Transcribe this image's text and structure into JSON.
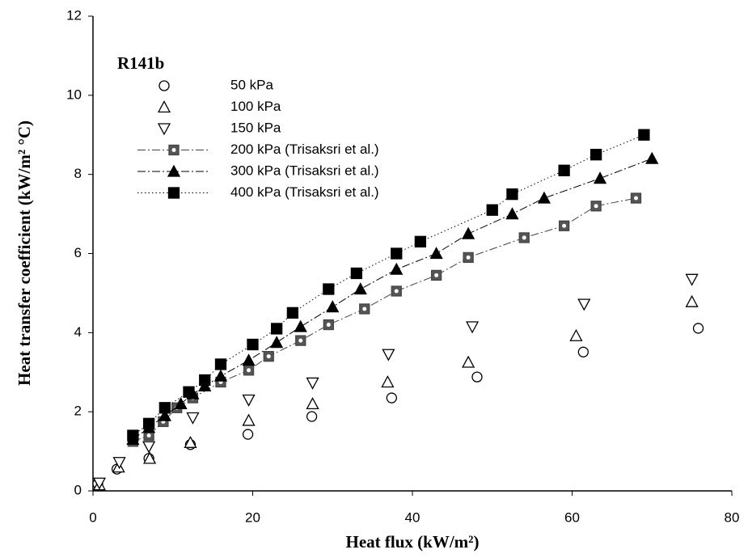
{
  "chart_data": {
    "type": "scatter",
    "x_label": "Heat flux (kW/m²)",
    "y_label": "Heat transfer coefficient (kW/m² °C)",
    "annotation": "R141b",
    "xlim": [
      0,
      80
    ],
    "xticks": [
      0,
      20,
      40,
      60,
      80
    ],
    "ylim": [
      0,
      12
    ],
    "yticks": [
      0,
      2,
      4,
      6,
      8,
      10,
      12
    ],
    "legend": "upper left",
    "series": [
      {
        "name": "50 kPa",
        "color": "#000000",
        "marker": "circle",
        "filled": false,
        "x": [
          0.6,
          3.0,
          7.0,
          12.2,
          19.4,
          27.4,
          37.4,
          48.1,
          61.4,
          75.8
        ],
        "values": [
          0.18,
          0.55,
          0.82,
          1.17,
          1.43,
          1.88,
          2.35,
          2.88,
          3.51,
          4.11
        ]
      },
      {
        "name": "100 kPa",
        "color": "#000000",
        "marker": "triangle-up",
        "filled": false,
        "x": [
          0.8,
          3.2,
          7.1,
          12.2,
          19.5,
          27.5,
          36.9,
          47.0,
          60.5,
          75.0
        ],
        "values": [
          0.15,
          0.6,
          0.82,
          1.22,
          1.78,
          2.2,
          2.75,
          3.25,
          3.92,
          4.78
        ]
      },
      {
        "name": "150 kPa",
        "color": "#000000",
        "marker": "triangle-down",
        "filled": false,
        "x": [
          0.8,
          3.3,
          7.0,
          12.5,
          19.5,
          27.5,
          37.0,
          47.5,
          61.5,
          75.0
        ],
        "values": [
          0.2,
          0.72,
          1.12,
          1.85,
          2.3,
          2.73,
          3.45,
          4.15,
          4.72,
          5.35
        ]
      },
      {
        "name": "200 kPa (Trisaksri et al.)",
        "color": "#444444",
        "marker": "square-dot",
        "filled": true,
        "line_style": "dashdot",
        "x": [
          5,
          7,
          8.8,
          10.5,
          12.5,
          16,
          19.5,
          22,
          26,
          29.5,
          34,
          38,
          43,
          47,
          54,
          59,
          63,
          68
        ],
        "values": [
          1.25,
          1.4,
          1.75,
          2.1,
          2.35,
          2.75,
          3.05,
          3.4,
          3.8,
          4.2,
          4.6,
          5.05,
          5.45,
          5.9,
          6.4,
          6.7,
          7.2,
          7.4
        ]
      },
      {
        "name": "300 kPa (Trisaksri et al.)",
        "color": "#000000",
        "marker": "triangle-up",
        "filled": true,
        "line_style": "dashdot",
        "x": [
          5,
          7,
          9,
          11,
          12.5,
          14,
          16,
          19.5,
          23,
          26,
          30,
          33.5,
          38,
          43,
          47,
          52.5,
          56.5,
          63.5,
          70
        ],
        "values": [
          1.3,
          1.6,
          1.9,
          2.2,
          2.45,
          2.65,
          2.9,
          3.3,
          3.75,
          4.15,
          4.65,
          5.1,
          5.6,
          6.0,
          6.5,
          7.0,
          7.4,
          7.9,
          8.4
        ]
      },
      {
        "name": "400 kPa (Trisaksri et al.)",
        "color": "#000000",
        "marker": "square",
        "filled": true,
        "line_style": "dotted",
        "x": [
          5,
          7,
          9,
          12,
          14,
          16,
          20,
          23,
          25,
          29.5,
          33,
          38,
          41,
          50,
          52.5,
          59,
          63,
          69
        ],
        "values": [
          1.4,
          1.7,
          2.1,
          2.5,
          2.8,
          3.2,
          3.7,
          4.1,
          4.5,
          5.1,
          5.5,
          6.0,
          6.3,
          7.1,
          7.5,
          8.1,
          8.5,
          9.0
        ]
      }
    ]
  }
}
